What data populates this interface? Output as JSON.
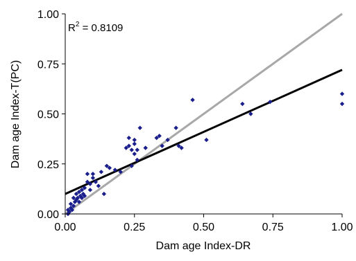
{
  "chart_data": {
    "type": "scatter",
    "xlabel": "Dam age Index-DR",
    "ylabel": "Dam age Index-T(PC)",
    "xlim": [
      0,
      1
    ],
    "ylim": [
      0,
      1
    ],
    "xticks": [
      "0.00",
      "0.25",
      "0.50",
      "0.75",
      "1.00"
    ],
    "yticks": [
      "0.00",
      "0.25",
      "0.50",
      "0.75",
      "1.00"
    ],
    "xtick_values": [
      0,
      0.25,
      0.5,
      0.75,
      1
    ],
    "ytick_values": [
      0,
      0.25,
      0.5,
      0.75,
      1
    ],
    "annotation": {
      "prefix": "R",
      "sup": "2",
      "suffix": " = 0.8109"
    },
    "grid": false,
    "series": [
      {
        "kind": "points",
        "color": "#1a1f8c",
        "points": [
          [
            0.01,
            0.0
          ],
          [
            0.01,
            0.02
          ],
          [
            0.015,
            0.01
          ],
          [
            0.02,
            0.03
          ],
          [
            0.02,
            0.05
          ],
          [
            0.025,
            0.02
          ],
          [
            0.03,
            0.08
          ],
          [
            0.03,
            0.04
          ],
          [
            0.035,
            0.06
          ],
          [
            0.04,
            0.1
          ],
          [
            0.04,
            0.07
          ],
          [
            0.045,
            0.08
          ],
          [
            0.05,
            0.11
          ],
          [
            0.05,
            0.06
          ],
          [
            0.055,
            0.09
          ],
          [
            0.06,
            0.12
          ],
          [
            0.06,
            0.08
          ],
          [
            0.065,
            0.1
          ],
          [
            0.07,
            0.13
          ],
          [
            0.07,
            0.09
          ],
          [
            0.08,
            0.2
          ],
          [
            0.08,
            0.16
          ],
          [
            0.09,
            0.15
          ],
          [
            0.09,
            0.12
          ],
          [
            0.1,
            0.2
          ],
          [
            0.1,
            0.18
          ],
          [
            0.11,
            0.16
          ],
          [
            0.12,
            0.14
          ],
          [
            0.13,
            0.21
          ],
          [
            0.14,
            0.1
          ],
          [
            0.15,
            0.24
          ],
          [
            0.16,
            0.23
          ],
          [
            0.18,
            0.22
          ],
          [
            0.2,
            0.21
          ],
          [
            0.22,
            0.33
          ],
          [
            0.23,
            0.34
          ],
          [
            0.23,
            0.38
          ],
          [
            0.24,
            0.24
          ],
          [
            0.24,
            0.32
          ],
          [
            0.25,
            0.3
          ],
          [
            0.25,
            0.35
          ],
          [
            0.25,
            0.37
          ],
          [
            0.26,
            0.32
          ],
          [
            0.26,
            0.27
          ],
          [
            0.27,
            0.43
          ],
          [
            0.29,
            0.33
          ],
          [
            0.33,
            0.38
          ],
          [
            0.34,
            0.39
          ],
          [
            0.35,
            0.34
          ],
          [
            0.37,
            0.37
          ],
          [
            0.4,
            0.43
          ],
          [
            0.41,
            0.34
          ],
          [
            0.42,
            0.33
          ],
          [
            0.46,
            0.57
          ],
          [
            0.51,
            0.37
          ],
          [
            0.64,
            0.55
          ],
          [
            0.67,
            0.5
          ],
          [
            0.74,
            0.56
          ],
          [
            1.0,
            0.6
          ],
          [
            1.0,
            0.55
          ]
        ]
      },
      {
        "kind": "line",
        "color": "#000000",
        "from": [
          0,
          0.1
        ],
        "to": [
          1,
          0.72
        ]
      },
      {
        "kind": "line",
        "color": "#a8a8a8",
        "from": [
          0,
          0
        ],
        "to": [
          1,
          1
        ]
      }
    ]
  }
}
